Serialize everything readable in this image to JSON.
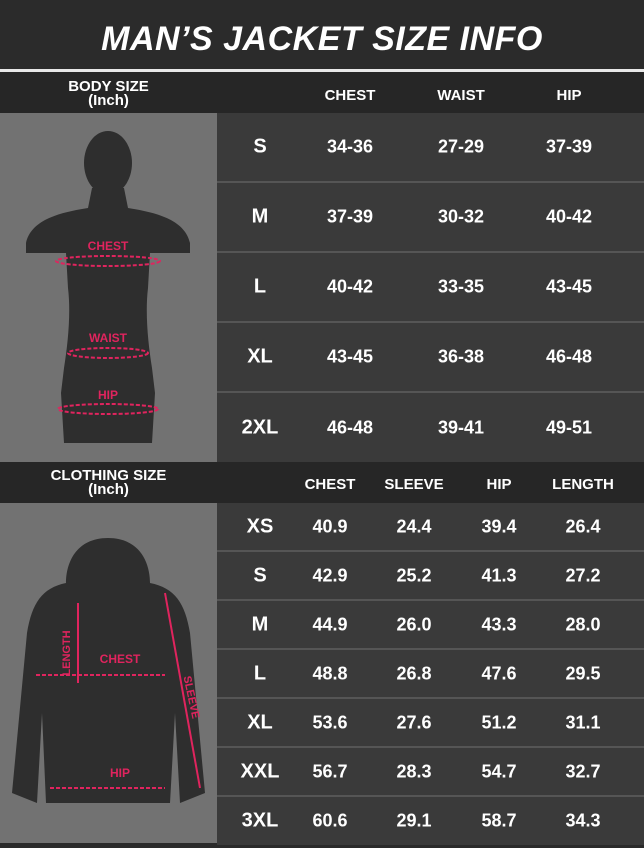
{
  "title": "MAN’S JACKET SIZE INFO",
  "accent_color": "#e0245e",
  "body_size": {
    "label": "BODY SIZE",
    "unit": "(Inch)",
    "columns": [
      "CHEST",
      "WAIST",
      "HIP"
    ],
    "figure_labels": [
      "CHEST",
      "WAIST",
      "HIP"
    ],
    "rows": [
      {
        "size": "S",
        "values": [
          "34-36",
          "27-29",
          "37-39"
        ]
      },
      {
        "size": "M",
        "values": [
          "37-39",
          "30-32",
          "40-42"
        ]
      },
      {
        "size": "L",
        "values": [
          "40-42",
          "33-35",
          "43-45"
        ]
      },
      {
        "size": "XL",
        "values": [
          "43-45",
          "36-38",
          "46-48"
        ]
      },
      {
        "size": "2XL",
        "values": [
          "46-48",
          "39-41",
          "49-51"
        ]
      }
    ]
  },
  "clothing_size": {
    "label": "CLOTHING SIZE",
    "unit": "(Inch)",
    "columns": [
      "CHEST",
      "SLEEVE",
      "HIP",
      "LENGTH"
    ],
    "figure_labels": [
      "LENGTH",
      "CHEST",
      "SLEEVE",
      "HIP"
    ],
    "rows": [
      {
        "size": "XS",
        "values": [
          "40.9",
          "24.4",
          "39.4",
          "26.4"
        ]
      },
      {
        "size": "S",
        "values": [
          "42.9",
          "25.2",
          "41.3",
          "27.2"
        ]
      },
      {
        "size": "M",
        "values": [
          "44.9",
          "26.0",
          "43.3",
          "28.0"
        ]
      },
      {
        "size": "L",
        "values": [
          "48.8",
          "26.8",
          "47.6",
          "29.5"
        ]
      },
      {
        "size": "XL",
        "values": [
          "53.6",
          "27.6",
          "51.2",
          "31.1"
        ]
      },
      {
        "size": "XXL",
        "values": [
          "56.7",
          "28.3",
          "54.7",
          "32.7"
        ]
      },
      {
        "size": "3XL",
        "values": [
          "60.6",
          "29.1",
          "58.7",
          "34.3"
        ]
      }
    ]
  }
}
